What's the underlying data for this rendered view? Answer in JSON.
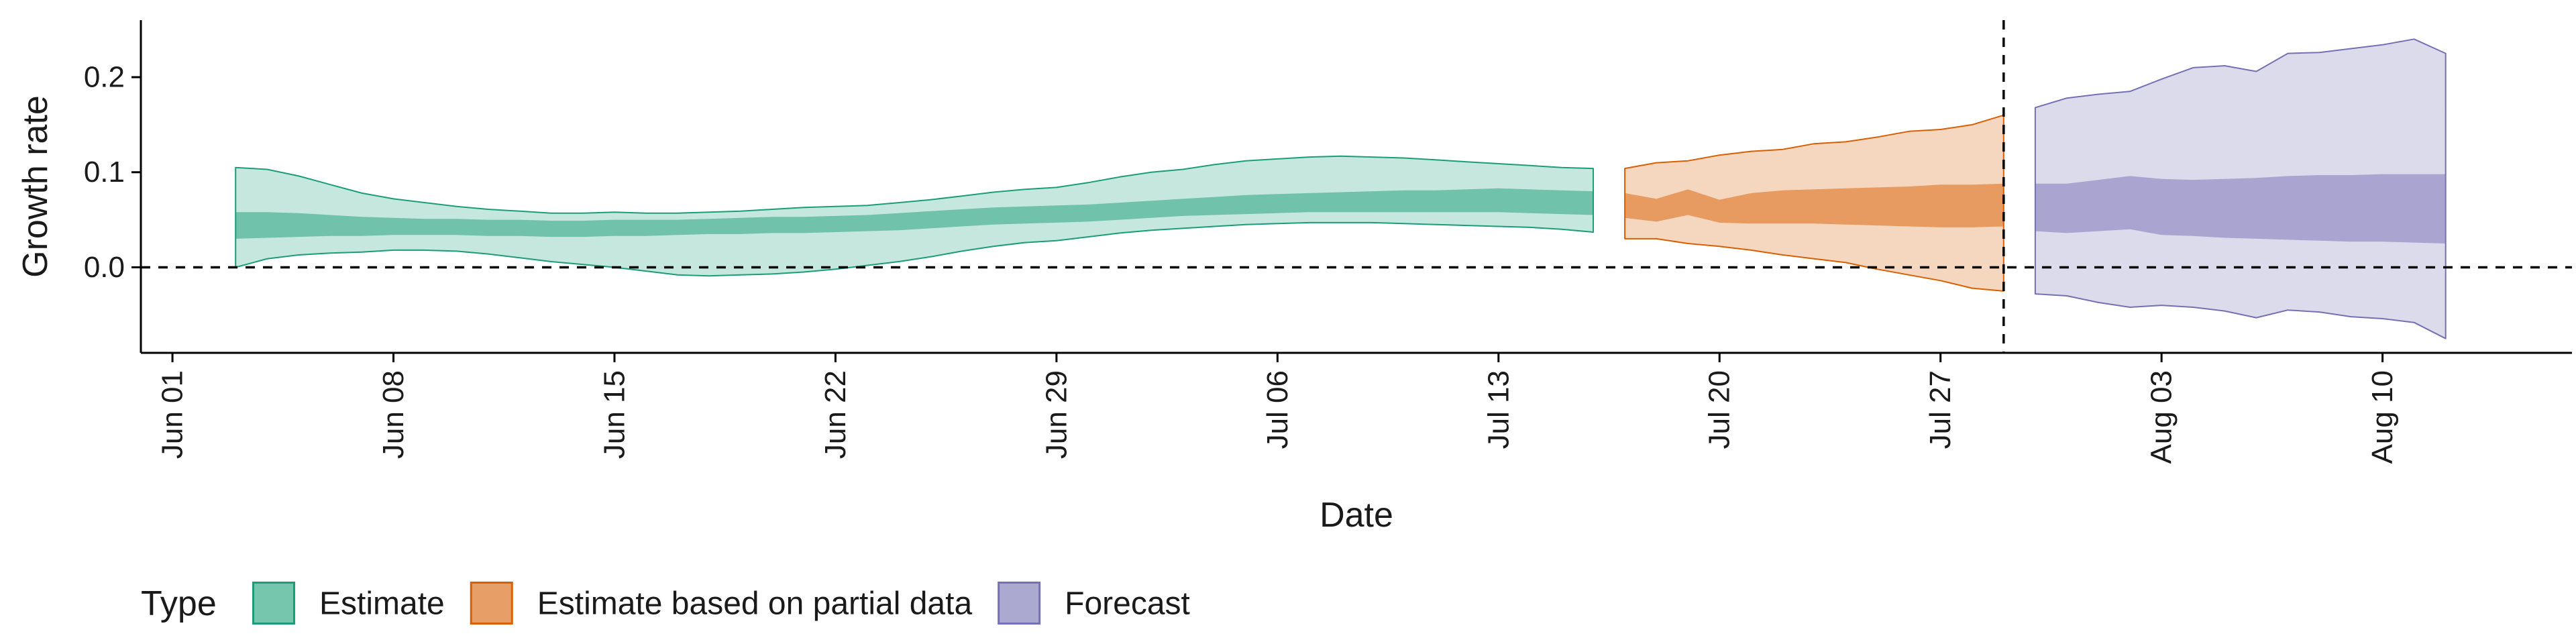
{
  "chart_data": {
    "type": "area",
    "title": "",
    "xlabel": "Date",
    "ylabel": "Growth rate",
    "x_ticks": [
      "2020-06-01",
      "2020-06-08",
      "2020-06-15",
      "2020-06-22",
      "2020-06-29",
      "2020-07-06",
      "2020-07-13",
      "2020-07-20",
      "2020-07-27",
      "2020-08-03",
      "2020-08-10"
    ],
    "x_tick_labels": [
      "Jun 01",
      "Jun 08",
      "Jun 15",
      "Jun 22",
      "Jun 29",
      "Jul 06",
      "Jul 13",
      "Jul 20",
      "Jul 27",
      "Aug 03",
      "Aug 10"
    ],
    "xlim": [
      "2020-05-31",
      "2020-08-16"
    ],
    "y_ticks": [
      0.0,
      0.1,
      0.2
    ],
    "y_tick_labels": [
      "0.0",
      "0.1",
      "0.2"
    ],
    "ylim": [
      -0.09,
      0.26
    ],
    "hline_y": 0.0,
    "vline_x": "2020-07-29",
    "legend": {
      "title": "Type",
      "position": "bottom",
      "entries": [
        {
          "label": "Estimate",
          "color": "#1b9e77"
        },
        {
          "label": "Estimate based on partial data",
          "color": "#d95f02"
        },
        {
          "label": "Forecast",
          "color": "#7570b3"
        }
      ]
    },
    "series": [
      {
        "name": "Estimate",
        "color": "#1b9e77",
        "x": [
          "2020-06-03",
          "2020-06-04",
          "2020-06-05",
          "2020-06-06",
          "2020-06-07",
          "2020-06-08",
          "2020-06-09",
          "2020-06-10",
          "2020-06-11",
          "2020-06-12",
          "2020-06-13",
          "2020-06-14",
          "2020-06-15",
          "2020-06-16",
          "2020-06-17",
          "2020-06-18",
          "2020-06-19",
          "2020-06-20",
          "2020-06-21",
          "2020-06-22",
          "2020-06-23",
          "2020-06-24",
          "2020-06-25",
          "2020-06-26",
          "2020-06-27",
          "2020-06-28",
          "2020-06-29",
          "2020-06-30",
          "2020-07-01",
          "2020-07-02",
          "2020-07-03",
          "2020-07-04",
          "2020-07-05",
          "2020-07-06",
          "2020-07-07",
          "2020-07-08",
          "2020-07-09",
          "2020-07-10",
          "2020-07-11",
          "2020-07-12",
          "2020-07-13",
          "2020-07-14",
          "2020-07-15",
          "2020-07-16"
        ],
        "outer_upper": [
          0.105,
          0.103,
          0.096,
          0.087,
          0.078,
          0.072,
          0.068,
          0.064,
          0.061,
          0.059,
          0.057,
          0.057,
          0.058,
          0.057,
          0.057,
          0.058,
          0.059,
          0.061,
          0.063,
          0.064,
          0.065,
          0.068,
          0.071,
          0.075,
          0.079,
          0.082,
          0.084,
          0.089,
          0.095,
          0.1,
          0.103,
          0.108,
          0.112,
          0.114,
          0.116,
          0.117,
          0.116,
          0.115,
          0.113,
          0.111,
          0.109,
          0.107,
          0.105,
          0.104
        ],
        "inner_upper": [
          0.058,
          0.058,
          0.057,
          0.055,
          0.053,
          0.052,
          0.051,
          0.051,
          0.05,
          0.05,
          0.049,
          0.049,
          0.05,
          0.05,
          0.05,
          0.051,
          0.052,
          0.053,
          0.053,
          0.054,
          0.055,
          0.057,
          0.059,
          0.061,
          0.063,
          0.064,
          0.065,
          0.066,
          0.068,
          0.07,
          0.072,
          0.074,
          0.076,
          0.077,
          0.078,
          0.079,
          0.08,
          0.081,
          0.081,
          0.082,
          0.083,
          0.082,
          0.081,
          0.08
        ],
        "inner_lower": [
          0.03,
          0.031,
          0.032,
          0.033,
          0.033,
          0.034,
          0.034,
          0.034,
          0.033,
          0.033,
          0.032,
          0.032,
          0.033,
          0.033,
          0.034,
          0.035,
          0.035,
          0.036,
          0.036,
          0.037,
          0.038,
          0.039,
          0.041,
          0.043,
          0.045,
          0.046,
          0.047,
          0.048,
          0.05,
          0.052,
          0.054,
          0.055,
          0.056,
          0.057,
          0.058,
          0.058,
          0.058,
          0.058,
          0.058,
          0.058,
          0.058,
          0.057,
          0.056,
          0.055
        ],
        "outer_lower": [
          0.0,
          0.009,
          0.013,
          0.015,
          0.016,
          0.018,
          0.018,
          0.017,
          0.014,
          0.01,
          0.006,
          0.003,
          0.0,
          -0.004,
          -0.008,
          -0.009,
          -0.008,
          -0.007,
          -0.005,
          -0.002,
          0.002,
          0.006,
          0.011,
          0.017,
          0.022,
          0.026,
          0.028,
          0.032,
          0.036,
          0.039,
          0.041,
          0.043,
          0.045,
          0.046,
          0.047,
          0.047,
          0.047,
          0.046,
          0.045,
          0.044,
          0.043,
          0.042,
          0.04,
          0.037
        ]
      },
      {
        "name": "Estimate based on partial data",
        "color": "#d95f02",
        "x": [
          "2020-07-17",
          "2020-07-18",
          "2020-07-19",
          "2020-07-20",
          "2020-07-21",
          "2020-07-22",
          "2020-07-23",
          "2020-07-24",
          "2020-07-25",
          "2020-07-26",
          "2020-07-27",
          "2020-07-28",
          "2020-07-29"
        ],
        "outer_upper": [
          0.104,
          0.11,
          0.112,
          0.118,
          0.122,
          0.124,
          0.13,
          0.132,
          0.137,
          0.143,
          0.145,
          0.15,
          0.16
        ],
        "inner_upper": [
          0.078,
          0.072,
          0.082,
          0.071,
          0.078,
          0.081,
          0.082,
          0.083,
          0.084,
          0.085,
          0.087,
          0.087,
          0.088
        ],
        "inner_lower": [
          0.052,
          0.048,
          0.055,
          0.047,
          0.046,
          0.046,
          0.046,
          0.045,
          0.044,
          0.043,
          0.042,
          0.042,
          0.043
        ],
        "outer_lower": [
          0.03,
          0.03,
          0.025,
          0.022,
          0.018,
          0.013,
          0.009,
          0.005,
          -0.002,
          -0.008,
          -0.014,
          -0.022,
          -0.025
        ]
      },
      {
        "name": "Forecast",
        "color": "#7570b3",
        "x": [
          "2020-07-30",
          "2020-07-31",
          "2020-08-01",
          "2020-08-02",
          "2020-08-03",
          "2020-08-04",
          "2020-08-05",
          "2020-08-06",
          "2020-08-07",
          "2020-08-08",
          "2020-08-09",
          "2020-08-10",
          "2020-08-11",
          "2020-08-12"
        ],
        "outer_upper": [
          0.168,
          0.178,
          0.182,
          0.185,
          0.198,
          0.21,
          0.212,
          0.206,
          0.225,
          0.226,
          0.23,
          0.234,
          0.24,
          0.225
        ],
        "inner_upper": [
          0.088,
          0.088,
          0.092,
          0.096,
          0.093,
          0.092,
          0.093,
          0.094,
          0.096,
          0.097,
          0.097,
          0.098,
          0.098,
          0.098
        ],
        "inner_lower": [
          0.038,
          0.036,
          0.038,
          0.04,
          0.034,
          0.033,
          0.031,
          0.03,
          0.029,
          0.028,
          0.027,
          0.027,
          0.026,
          0.025
        ],
        "outer_lower": [
          -0.028,
          -0.03,
          -0.037,
          -0.042,
          -0.04,
          -0.042,
          -0.046,
          -0.053,
          -0.045,
          -0.047,
          -0.052,
          -0.054,
          -0.058,
          -0.075
        ]
      }
    ]
  }
}
